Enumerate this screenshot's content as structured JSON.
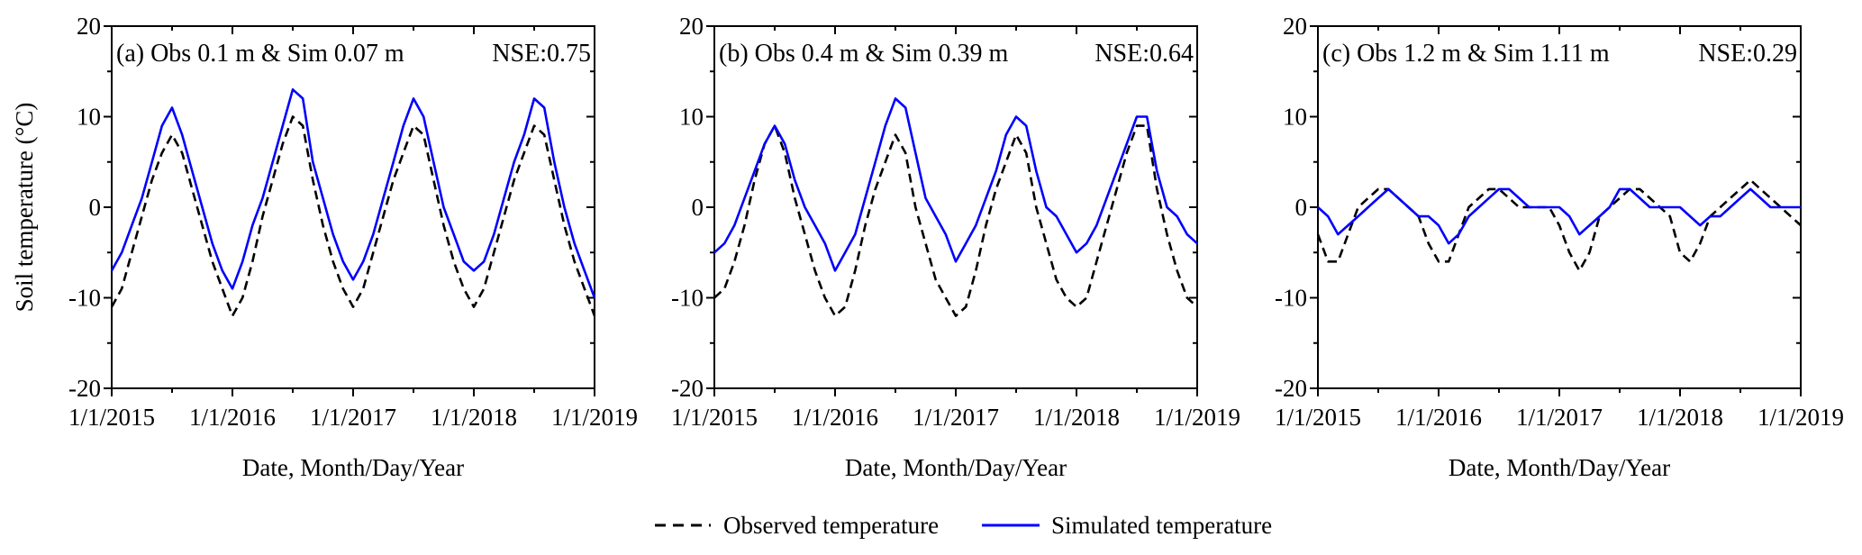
{
  "colors": {
    "observed": "#000000",
    "simulated": "#0000ff"
  },
  "y_axis_title": "Soil temperature (°C)",
  "legend": {
    "observed": "Observed temperature",
    "simulated": "Simulated temperature"
  },
  "chart_data": [
    {
      "type": "line",
      "title": "(a) Obs 0.1 m & Sim 0.07 m",
      "annotation": "NSE:0.75",
      "xlabel": "Date, Month/Day/Year",
      "ylabel": "Soil temperature (°C)",
      "x_ticks": [
        "1/1/2015",
        "1/1/2016",
        "1/1/2017",
        "1/1/2018",
        "1/1/2019"
      ],
      "y_ticks": [
        "20",
        "10",
        "0",
        "-10",
        "-20"
      ],
      "ylim": [
        -20,
        20
      ],
      "x_range": [
        "2015-01",
        "2019-01"
      ],
      "x_step": "monthly",
      "series": [
        {
          "name": "Observed temperature",
          "style": "dashed",
          "values": [
            -11,
            -9,
            -5,
            -1,
            3,
            6,
            8,
            6,
            2,
            -2,
            -6,
            -9,
            -12,
            -10,
            -6,
            -1,
            3,
            7,
            10,
            9,
            3,
            -2,
            -6,
            -9,
            -11,
            -9,
            -5,
            -1,
            3,
            6,
            9,
            8,
            3,
            -2,
            -6,
            -9,
            -11,
            -9,
            -5,
            -1,
            3,
            6,
            9,
            8,
            3,
            -2,
            -6,
            -9,
            -12
          ]
        },
        {
          "name": "Simulated temperature",
          "style": "solid",
          "values": [
            -7,
            -5,
            -2,
            1,
            5,
            9,
            11,
            8,
            4,
            0,
            -4,
            -7,
            -9,
            -6,
            -2,
            1,
            5,
            9,
            13,
            12,
            5,
            1,
            -3,
            -6,
            -8,
            -6,
            -3,
            1,
            5,
            9,
            12,
            10,
            5,
            0,
            -3,
            -6,
            -7,
            -6,
            -3,
            1,
            5,
            8,
            12,
            11,
            5,
            0,
            -4,
            -7,
            -10
          ]
        }
      ]
    },
    {
      "type": "line",
      "title": "(b) Obs 0.4 m & Sim 0.39 m",
      "annotation": "NSE:0.64",
      "xlabel": "Date, Month/Day/Year",
      "x_ticks": [
        "1/1/2015",
        "1/1/2016",
        "1/1/2017",
        "1/1/2018",
        "1/1/2019"
      ],
      "y_ticks": [
        "20",
        "10",
        "0",
        "-10",
        "-20"
      ],
      "ylim": [
        -20,
        20
      ],
      "x_range": [
        "2015-01",
        "2019-01"
      ],
      "x_step": "monthly",
      "series": [
        {
          "name": "Observed temperature",
          "style": "dashed",
          "values": [
            -10,
            -9,
            -6,
            -2,
            3,
            7,
            9,
            6,
            1,
            -3,
            -7,
            -10,
            -12,
            -11,
            -7,
            -2,
            2,
            5,
            8,
            6,
            0,
            -4,
            -8,
            -10,
            -12,
            -11,
            -7,
            -2,
            2,
            5,
            8,
            6,
            0,
            -4,
            -8,
            -10,
            -11,
            -10,
            -6,
            -2,
            2,
            6,
            9,
            9,
            2,
            -3,
            -7,
            -10,
            -11
          ]
        },
        {
          "name": "Simulated temperature",
          "style": "solid",
          "values": [
            -5,
            -4,
            -2,
            1,
            4,
            7,
            9,
            7,
            3,
            0,
            -2,
            -4,
            -7,
            -5,
            -3,
            1,
            5,
            9,
            12,
            11,
            6,
            1,
            -1,
            -3,
            -6,
            -4,
            -2,
            1,
            4,
            8,
            10,
            9,
            4,
            0,
            -1,
            -3,
            -5,
            -4,
            -2,
            1,
            4,
            7,
            10,
            10,
            4,
            0,
            -1,
            -3,
            -4
          ]
        }
      ]
    },
    {
      "type": "line",
      "title": "(c) Obs 1.2 m & Sim 1.11 m",
      "annotation": "NSE:0.29",
      "xlabel": "Date, Month/Day/Year",
      "x_ticks": [
        "1/1/2015",
        "1/1/2016",
        "1/1/2017",
        "1/1/2018",
        "1/1/2019"
      ],
      "y_ticks": [
        "20",
        "10",
        "0",
        "-10",
        "-20"
      ],
      "ylim": [
        -20,
        20
      ],
      "x_range": [
        "2015-01",
        "2019-01"
      ],
      "x_step": "monthly",
      "series": [
        {
          "name": "Observed temperature",
          "style": "dashed",
          "values": [
            -3,
            -6,
            -6,
            -3,
            0,
            1,
            2,
            2,
            1,
            0,
            -1,
            -4,
            -6,
            -6,
            -3,
            0,
            1,
            2,
            2,
            1,
            0,
            0,
            0,
            0,
            -2,
            -5,
            -7,
            -5,
            -1,
            0,
            1,
            2,
            2,
            1,
            0,
            -1,
            -5,
            -6,
            -4,
            -1,
            0,
            1,
            2,
            3,
            2,
            1,
            0,
            -1,
            -2
          ]
        },
        {
          "name": "Simulated temperature",
          "style": "solid",
          "values": [
            0,
            -1,
            -3,
            -2,
            -1,
            0,
            1,
            2,
            1,
            0,
            -1,
            -1,
            -2,
            -4,
            -3,
            -1,
            0,
            1,
            2,
            2,
            1,
            0,
            0,
            0,
            0,
            -1,
            -3,
            -2,
            -1,
            0,
            2,
            2,
            1,
            0,
            0,
            0,
            0,
            -1,
            -2,
            -1,
            -1,
            0,
            1,
            2,
            1,
            0,
            0,
            0,
            0
          ]
        }
      ]
    }
  ]
}
